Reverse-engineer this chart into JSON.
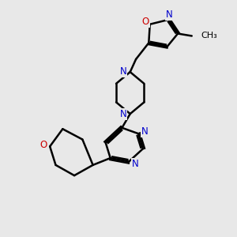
{
  "bg_color": "#e8e8e8",
  "bond_color": "#000000",
  "n_color": "#0000cc",
  "o_color": "#cc0000",
  "line_width": 1.8,
  "font_size": 8.5,
  "fig_size": [
    3.0,
    3.0
  ],
  "dpi": 100,
  "xlim": [
    0,
    10
  ],
  "ylim": [
    0,
    10
  ]
}
